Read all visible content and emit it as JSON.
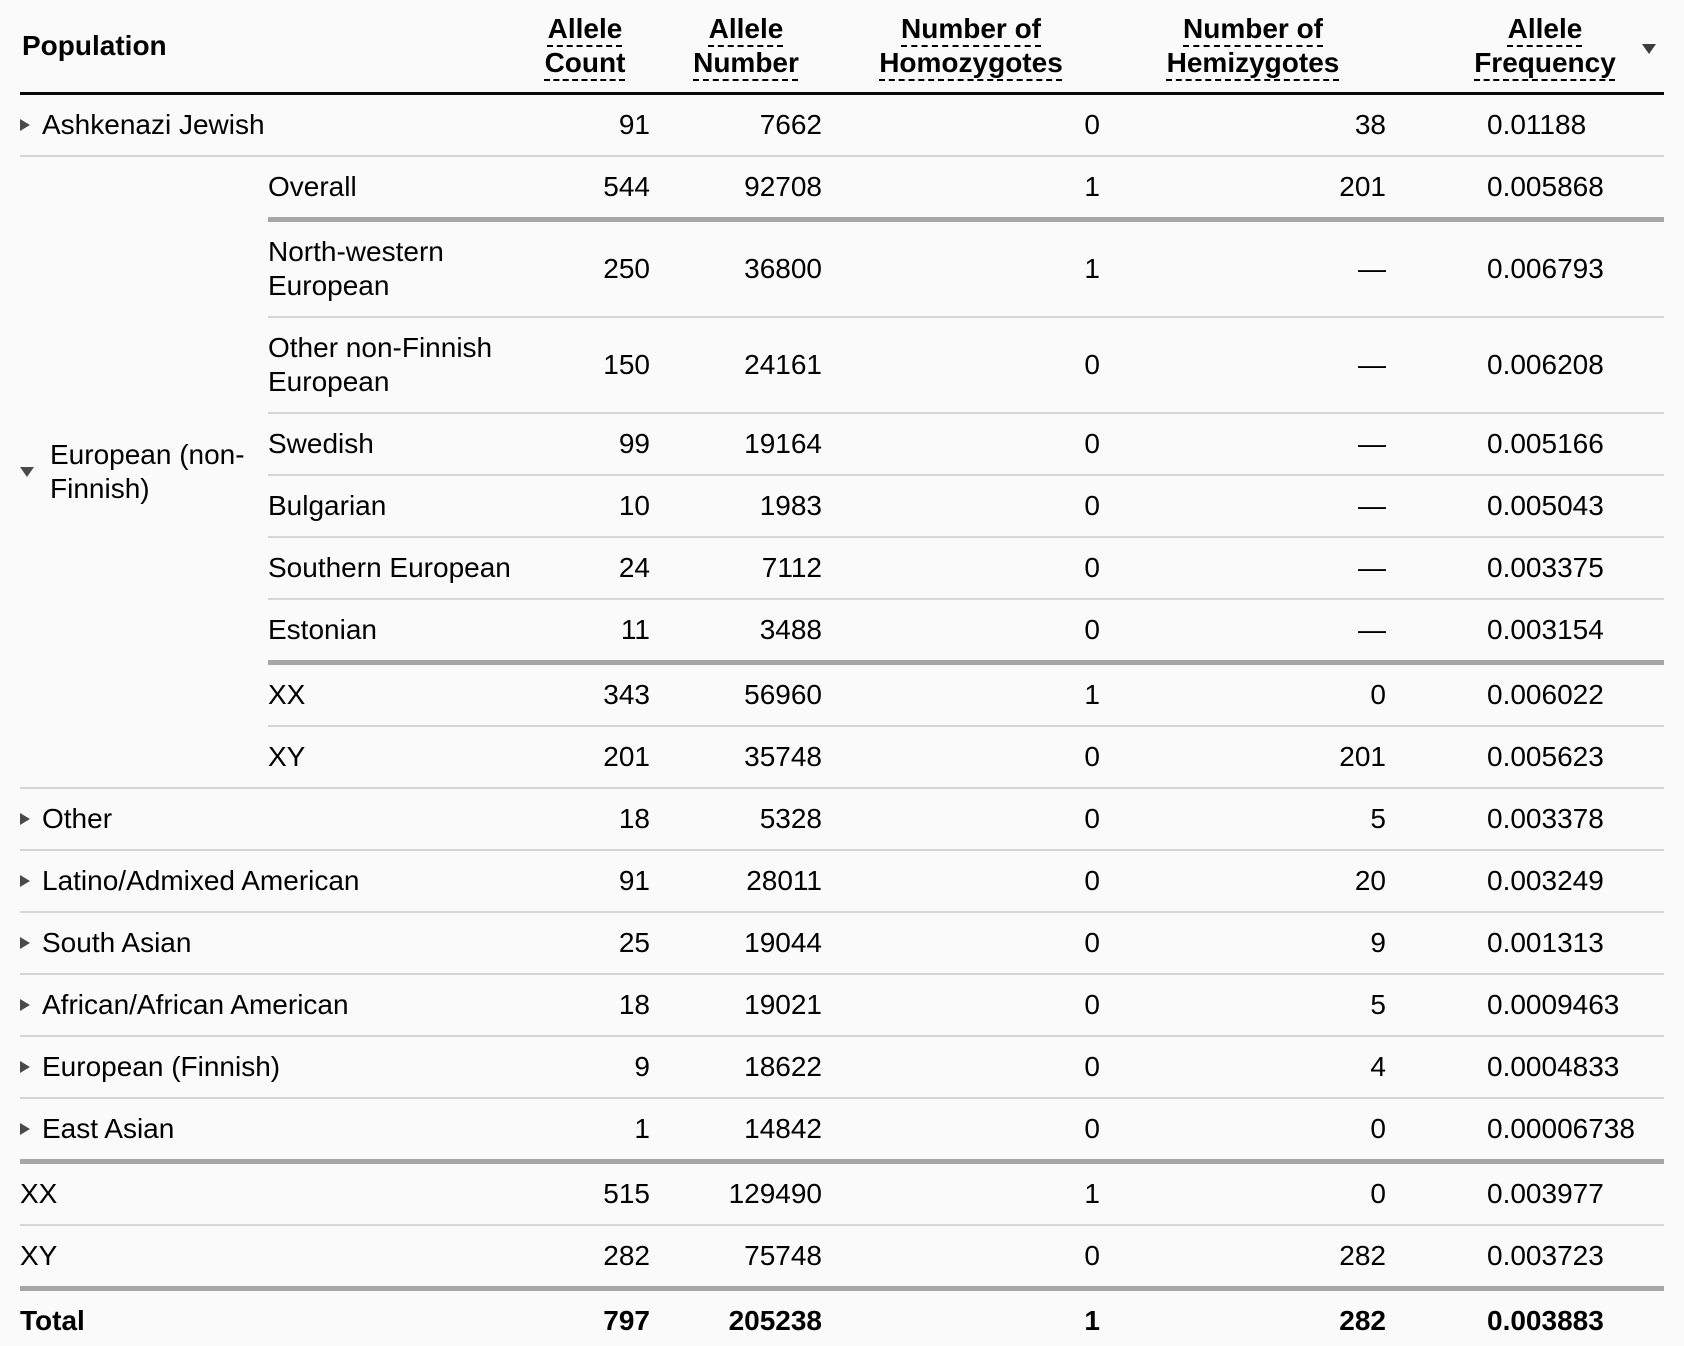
{
  "table": {
    "header": {
      "population": "Population",
      "allele_count": "Allele Count",
      "allele_number": "Allele Number",
      "homozygotes": "Number of Homozygotes",
      "hemizygotes": "Number of Hemizygotes",
      "allele_frequency": "Allele Frequency",
      "sort_column": "Allele Frequency",
      "sort_direction": "descending"
    },
    "icons": {
      "expand": "triangle-right",
      "collapse": "triangle-down",
      "sort_desc": "triangle-down"
    },
    "colors": {
      "background": "#fafafa",
      "text": "#000000",
      "row_divider": "#d6d6d6",
      "group_divider": "#a6a6a6",
      "header_border": "#0a0a0a"
    },
    "rows": [
      {
        "label": "Ashkenazi Jewish",
        "expanded": false,
        "ac": "91",
        "an": "7662",
        "hom": "0",
        "hemi": "38",
        "af": "0.01188"
      },
      {
        "label": "European (non-Finnish)",
        "expanded": true,
        "subrows": [
          {
            "label": "Overall",
            "ac": "544",
            "an": "92708",
            "hom": "1",
            "hemi": "201",
            "af": "0.005868"
          },
          {
            "label": "North-western European",
            "ac": "250",
            "an": "36800",
            "hom": "1",
            "hemi": "—",
            "af": "0.006793"
          },
          {
            "label": "Other non-Finnish European",
            "ac": "150",
            "an": "24161",
            "hom": "0",
            "hemi": "—",
            "af": "0.006208"
          },
          {
            "label": "Swedish",
            "ac": "99",
            "an": "19164",
            "hom": "0",
            "hemi": "—",
            "af": "0.005166"
          },
          {
            "label": "Bulgarian",
            "ac": "10",
            "an": "1983",
            "hom": "0",
            "hemi": "—",
            "af": "0.005043"
          },
          {
            "label": "Southern European",
            "ac": "24",
            "an": "7112",
            "hom": "0",
            "hemi": "—",
            "af": "0.003375"
          },
          {
            "label": "Estonian",
            "ac": "11",
            "an": "3488",
            "hom": "0",
            "hemi": "—",
            "af": "0.003154"
          },
          {
            "label": "XX",
            "ac": "343",
            "an": "56960",
            "hom": "1",
            "hemi": "0",
            "af": "0.006022"
          },
          {
            "label": "XY",
            "ac": "201",
            "an": "35748",
            "hom": "0",
            "hemi": "201",
            "af": "0.005623"
          }
        ]
      },
      {
        "label": "Other",
        "expanded": false,
        "ac": "18",
        "an": "5328",
        "hom": "0",
        "hemi": "5",
        "af": "0.003378"
      },
      {
        "label": "Latino/Admixed American",
        "expanded": false,
        "ac": "91",
        "an": "28011",
        "hom": "0",
        "hemi": "20",
        "af": "0.003249"
      },
      {
        "label": "South Asian",
        "expanded": false,
        "ac": "25",
        "an": "19044",
        "hom": "0",
        "hemi": "9",
        "af": "0.001313"
      },
      {
        "label": "African/African American",
        "expanded": false,
        "ac": "18",
        "an": "19021",
        "hom": "0",
        "hemi": "5",
        "af": "0.0009463"
      },
      {
        "label": "European (Finnish)",
        "expanded": false,
        "ac": "9",
        "an": "18622",
        "hom": "0",
        "hemi": "4",
        "af": "0.0004833"
      },
      {
        "label": "East Asian",
        "expanded": false,
        "ac": "1",
        "an": "14842",
        "hom": "0",
        "hemi": "0",
        "af": "0.00006738"
      },
      {
        "label": "XX",
        "ac": "515",
        "an": "129490",
        "hom": "1",
        "hemi": "0",
        "af": "0.003977"
      },
      {
        "label": "XY",
        "ac": "282",
        "an": "75748",
        "hom": "0",
        "hemi": "282",
        "af": "0.003723"
      },
      {
        "label": "Total",
        "ac": "797",
        "an": "205238",
        "hom": "1",
        "hemi": "282",
        "af": "0.003883"
      }
    ]
  }
}
